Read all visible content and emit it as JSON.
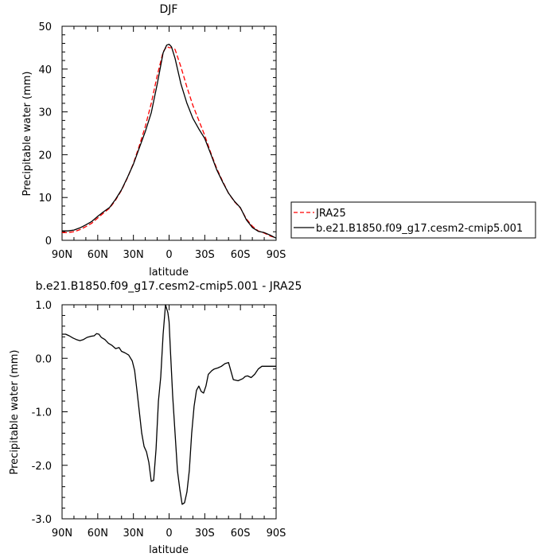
{
  "chart_data": [
    {
      "type": "line",
      "title": "DJF",
      "xlabel": "latitude",
      "ylabel": "Precipitable water (mm)",
      "xlim": [
        90,
        -90
      ],
      "ylim": [
        0,
        50
      ],
      "x_ticks": [
        90,
        60,
        30,
        0,
        -30,
        -60,
        -90
      ],
      "x_tick_labels": [
        "90N",
        "60N",
        "30N",
        "0",
        "30S",
        "60S",
        "90S"
      ],
      "y_ticks": [
        0,
        10,
        20,
        30,
        40,
        50
      ],
      "y_tick_labels": [
        "0",
        "10",
        "20",
        "30",
        "40",
        "50"
      ],
      "grid": false,
      "legend_position": "right",
      "series": [
        {
          "name": "JRA25",
          "color": "#ff0000",
          "dash": "dashed",
          "x": [
            90,
            85,
            80,
            75,
            70,
            65,
            60,
            55,
            50,
            45,
            40,
            35,
            30,
            25,
            20,
            15,
            10,
            5,
            2,
            0,
            -2,
            -5,
            -10,
            -15,
            -20,
            -25,
            -30,
            -35,
            -40,
            -45,
            -50,
            -55,
            -60,
            -65,
            -70,
            -75,
            -80,
            -85,
            -90
          ],
          "y": [
            1.8,
            1.8,
            2.0,
            2.5,
            3.2,
            4.0,
            5.2,
            6.4,
            7.5,
            9.4,
            11.7,
            14.6,
            18.0,
            22.1,
            26.6,
            32.0,
            38.5,
            44.0,
            45.3,
            45.0,
            45.0,
            44.6,
            40.5,
            35.8,
            31.5,
            28.0,
            24.5,
            20.5,
            16.8,
            13.8,
            11.0,
            9.0,
            7.5,
            5.0,
            3.3,
            2.2,
            1.7,
            1.0,
            0.6
          ]
        },
        {
          "name": "b.e21.B1850.f09_g17.cesm2-cmip5.001",
          "color": "#000000",
          "dash": "solid",
          "x": [
            90,
            85,
            80,
            75,
            70,
            65,
            60,
            55,
            50,
            45,
            40,
            35,
            30,
            25,
            20,
            15,
            10,
            5,
            2,
            0,
            -2,
            -5,
            -10,
            -15,
            -20,
            -25,
            -30,
            -35,
            -40,
            -45,
            -50,
            -55,
            -60,
            -65,
            -70,
            -75,
            -80,
            -85,
            -90
          ],
          "y": [
            2.2,
            2.2,
            2.4,
            2.9,
            3.6,
            4.4,
            5.6,
            6.7,
            7.7,
            9.6,
            11.8,
            14.7,
            17.8,
            21.6,
            25.4,
            29.8,
            36.5,
            43.8,
            45.6,
            45.8,
            45.2,
            42.5,
            36.5,
            32.0,
            28.5,
            26.0,
            23.8,
            20.2,
            16.5,
            13.6,
            11.0,
            9.1,
            7.6,
            4.8,
            3.0,
            2.1,
            1.8,
            1.2,
            0.5
          ]
        }
      ]
    },
    {
      "type": "line",
      "title": "b.e21.B1850.f09_g17.cesm2-cmip5.001 - JRA25",
      "xlabel": "latitude",
      "ylabel": "Precipitable water (mm)",
      "xlim": [
        90,
        -90
      ],
      "ylim": [
        -3.0,
        1.0
      ],
      "x_ticks": [
        90,
        60,
        30,
        0,
        -30,
        -60,
        -90
      ],
      "x_tick_labels": [
        "90N",
        "60N",
        "30N",
        "0",
        "30S",
        "60S",
        "90S"
      ],
      "y_ticks": [
        1.0,
        0.0,
        -1.0,
        -2.0,
        -3.0
      ],
      "y_tick_labels": [
        "1.0",
        "0.0",
        "-1.0",
        "-2.0",
        "-3.0"
      ],
      "grid": false,
      "series": [
        {
          "name": "",
          "color": "#000000",
          "dash": "solid",
          "x": [
            90,
            87,
            84,
            81,
            78,
            75,
            72,
            69,
            66,
            63,
            61,
            59,
            57,
            54,
            51,
            48,
            45,
            42,
            40,
            37,
            34,
            31,
            29,
            27,
            25,
            23,
            21,
            19,
            17,
            15,
            13,
            11,
            9,
            7,
            5,
            3,
            1,
            0,
            -1,
            -3,
            -5,
            -7,
            -9,
            -11,
            -13,
            -15,
            -17,
            -19,
            -21,
            -23,
            -25,
            -27,
            -29,
            -31,
            -33,
            -36,
            -38,
            -41,
            -44,
            -47,
            -50,
            -54,
            -58,
            -62,
            -64,
            -66,
            -69,
            -72,
            -75,
            -78,
            -80,
            -83,
            -86,
            -90
          ],
          "y": [
            0.45,
            0.45,
            0.42,
            0.38,
            0.35,
            0.33,
            0.35,
            0.39,
            0.41,
            0.42,
            0.46,
            0.45,
            0.39,
            0.35,
            0.28,
            0.24,
            0.18,
            0.2,
            0.13,
            0.1,
            0.06,
            -0.05,
            -0.23,
            -0.6,
            -1.0,
            -1.4,
            -1.65,
            -1.75,
            -1.95,
            -2.3,
            -2.28,
            -1.7,
            -0.8,
            -0.35,
            0.45,
            1.0,
            0.85,
            0.68,
            0.2,
            -0.7,
            -1.4,
            -2.1,
            -2.45,
            -2.73,
            -2.7,
            -2.5,
            -2.1,
            -1.4,
            -0.9,
            -0.6,
            -0.52,
            -0.62,
            -0.65,
            -0.52,
            -0.3,
            -0.23,
            -0.2,
            -0.18,
            -0.15,
            -0.1,
            -0.08,
            -0.4,
            -0.42,
            -0.38,
            -0.34,
            -0.33,
            -0.36,
            -0.3,
            -0.2,
            -0.15,
            -0.15,
            -0.15,
            -0.15,
            -0.15
          ]
        }
      ]
    }
  ]
}
